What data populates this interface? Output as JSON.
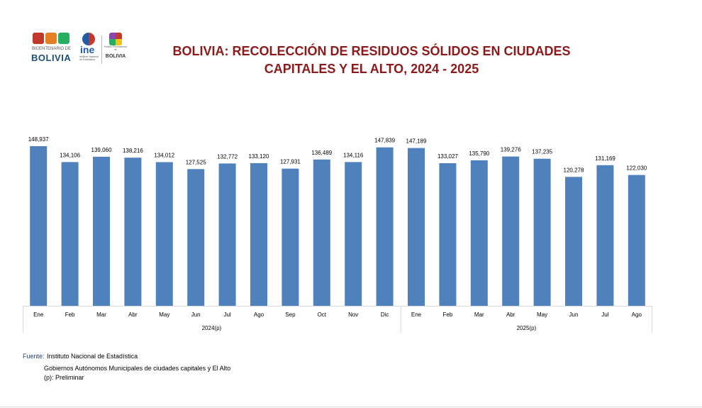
{
  "logos": {
    "bicentenario_top": "BICENTENARIO DE",
    "bicentenario_main": "BOLIVIA",
    "ine": "ine",
    "ine_sub": "Instituto Nacional de Estadística",
    "estado": "BOLIVIA",
    "estado_sub": "Estado Plurinacional de"
  },
  "title_line1": "BOLIVIA: RECOLECCIÓN DE RESIDUOS SÓLIDOS EN CIUDADES",
  "title_line2": "CAPITALES Y EL ALTO, 2024 - 2025",
  "colors": {
    "bar": "#4f81bd",
    "title": "#8b1a1a",
    "axis": "#d9d9d9"
  },
  "chart_data": {
    "type": "bar",
    "title": "BOLIVIA: RECOLECCIÓN DE RESIDUOS SÓLIDOS EN CIUDADES CAPITALES Y EL ALTO, 2024 - 2025",
    "groups": [
      {
        "label": "2024(p)",
        "categories": [
          "Ene",
          "Feb",
          "Mar",
          "Abr",
          "May",
          "Jun",
          "Jul",
          "Ago",
          "Sep",
          "Oct",
          "Nov",
          "Dic"
        ],
        "values": [
          148937,
          134106,
          139060,
          138216,
          134012,
          127525,
          132772,
          133120,
          127931,
          136489,
          134116,
          147839
        ],
        "labels": [
          "148,937",
          "134,106",
          "139,060",
          "138,216",
          "134,012",
          "127,525",
          "132,772",
          "133,120",
          "127,931",
          "136,489",
          "134,116",
          "147,839"
        ]
      },
      {
        "label": "2025(p)",
        "categories": [
          "Ene",
          "Feb",
          "Mar",
          "Abr",
          "May",
          "Jun",
          "Jul",
          "Ago"
        ],
        "values": [
          147189,
          133027,
          135790,
          139276,
          137235,
          120278,
          131169,
          122030
        ],
        "labels": [
          "147,189",
          "133,027",
          "135,790",
          "139,276",
          "137,235",
          "120,278",
          "131,169",
          "122,030"
        ]
      }
    ],
    "xlabel": "",
    "ylabel": "",
    "ylim": [
      0,
      160000
    ],
    "grid": false,
    "legend": "none"
  },
  "source": {
    "label": "Fuente:",
    "line1": "Instituto Nacional de Estadística",
    "line2": "Gobiernos Autónomos Municipales de ciudades capitales y El Alto",
    "line3": "(p): Preliminar"
  }
}
